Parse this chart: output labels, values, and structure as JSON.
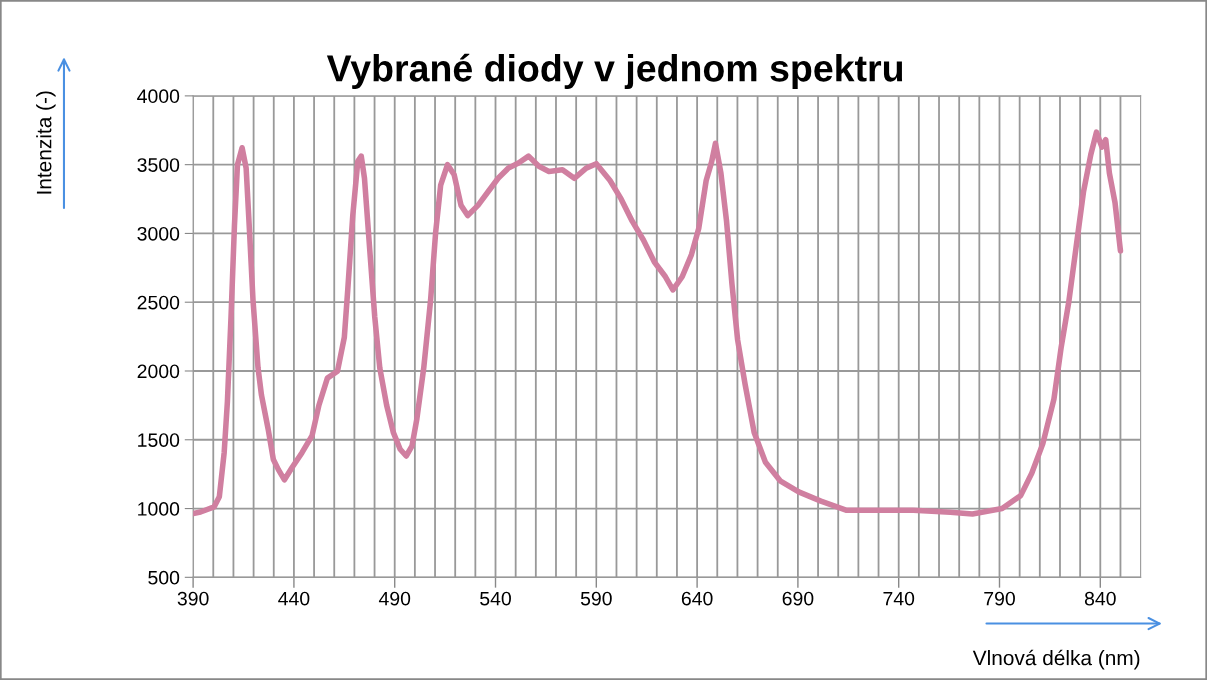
{
  "chart_data": {
    "type": "line",
    "title": "Vybrané diody v jednom spektru",
    "xlabel": "Vlnová délka (nm)",
    "ylabel": "Intenzita (-)",
    "series": [
      {
        "color": "#d07fa0",
        "x": [
          390,
          393.7,
          400.4,
          403,
          405.4,
          407,
          408.8,
          410.5,
          412,
          414.3,
          416.3,
          418,
          419.7,
          422.2,
          423.9,
          427.2,
          429.8,
          432.3,
          435.3,
          439,
          444,
          449,
          452.4,
          456.6,
          461.6,
          465,
          466.7,
          469.2,
          471.7,
          473.4,
          475,
          477.6,
          480.1,
          482.6,
          486,
          489.3,
          492.7,
          495.7,
          498.6,
          501,
          504.4,
          507.8,
          510.3,
          512.8,
          516.2,
          519.5,
          522.9,
          526.2,
          531.3,
          536.3,
          541.3,
          546.4,
          551.4,
          556.4,
          561.5,
          566.5,
          573.2,
          579.1,
          585,
          590,
          596.8,
          602.3,
          607.8,
          613.3,
          618.8,
          624.3,
          628,
          632.6,
          637.2,
          640.8,
          644.5,
          647.2,
          649.1,
          651.8,
          654.6,
          657.3,
          660.1,
          663.8,
          668.3,
          673.9,
          681.2,
          690.4,
          701.4,
          714.2,
          728.9,
          747.2,
          765.6,
          776.6,
          791.3,
          800.5,
          806,
          811.5,
          817,
          820.6,
          824.3,
          828,
          831.7,
          835.3,
          838.1,
          840.8,
          842.7,
          844.5,
          847.3,
          850
        ],
        "values": [
          963,
          975,
          1012,
          1086,
          1406,
          1776,
          2392,
          3057,
          3500,
          3623,
          3475,
          3007,
          2515,
          2022,
          1825,
          1579,
          1357,
          1283,
          1209,
          1296,
          1406,
          1530,
          1751,
          1948,
          1998,
          2244,
          2589,
          3131,
          3525,
          3562,
          3401,
          2884,
          2392,
          2022,
          1751,
          1554,
          1431,
          1382,
          1456,
          1653,
          2022,
          2515,
          3007,
          3352,
          3500,
          3426,
          3204,
          3130,
          3204,
          3303,
          3401,
          3475,
          3512,
          3562,
          3488,
          3451,
          3463,
          3401,
          3475,
          3507,
          3385,
          3251,
          3089,
          2954,
          2792,
          2685,
          2590,
          2685,
          2846,
          3035,
          3385,
          3520,
          3655,
          3439,
          3089,
          2631,
          2226,
          1903,
          1553,
          1337,
          1202,
          1121,
          1054,
          987,
          987,
          987,
          973,
          960,
          1000,
          1094,
          1256,
          1472,
          1795,
          2173,
          2496,
          2900,
          3305,
          3574,
          3736,
          3628,
          3682,
          3439,
          3224,
          2873
        ]
      }
    ],
    "xlim": [
      390,
      860
    ],
    "xticks": [
      390,
      {
        "value": 400,
        "label": null
      },
      {
        "value": 410,
        "label": null
      },
      {
        "value": 420,
        "label": null
      },
      {
        "value": 430,
        "label": null
      },
      440,
      {
        "value": 450,
        "label": null
      },
      {
        "value": 460,
        "label": null
      },
      {
        "value": 470,
        "label": null
      },
      {
        "value": 480,
        "label": null
      },
      490,
      {
        "value": 500,
        "label": null
      },
      {
        "value": 510,
        "label": null
      },
      {
        "value": 520,
        "label": null
      },
      {
        "value": 530,
        "label": null
      },
      540,
      {
        "value": 550,
        "label": null
      },
      {
        "value": 560,
        "label": null
      },
      {
        "value": 570,
        "label": null
      },
      {
        "value": 580,
        "label": null
      },
      590,
      {
        "value": 600,
        "label": null
      },
      {
        "value": 610,
        "label": null
      },
      {
        "value": 620,
        "label": null
      },
      {
        "value": 630,
        "label": null
      },
      640,
      {
        "value": 650,
        "label": null
      },
      {
        "value": 660,
        "label": null
      },
      {
        "value": 670,
        "label": null
      },
      {
        "value": 680,
        "label": null
      },
      690,
      {
        "value": 700,
        "label": null
      },
      {
        "value": 710,
        "label": null
      },
      {
        "value": 720,
        "label": null
      },
      {
        "value": 730,
        "label": null
      },
      740,
      {
        "value": 750,
        "label": null
      },
      {
        "value": 760,
        "label": null
      },
      {
        "value": 770,
        "label": null
      },
      {
        "value": 780,
        "label": null
      },
      790,
      {
        "value": 800,
        "label": null
      },
      {
        "value": 810,
        "label": null
      },
      {
        "value": 820,
        "label": null
      },
      {
        "value": 830,
        "label": null
      },
      840,
      {
        "value": 850,
        "label": null
      }
    ],
    "ylim": [
      500,
      4000
    ],
    "yticks": [
      500,
      1000,
      1500,
      2000,
      2500,
      3000,
      3500,
      4000
    ],
    "grid": true,
    "line_style": "solid",
    "marker": "none",
    "legend": false
  }
}
